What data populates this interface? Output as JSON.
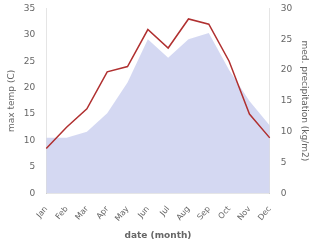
{
  "chart_data": {
    "type": "line",
    "x_label": "date (month)",
    "y_label": "max temp (C)",
    "y2_label": "med. precipitation (kg/m2)",
    "categories": [
      "Jan",
      "Feb",
      "Mar",
      "Apr",
      "May",
      "Jun",
      "Jul",
      "Aug",
      "Sep",
      "Oct",
      "Nov",
      "Dec"
    ],
    "series": [
      {
        "type": "area",
        "axis": "y2",
        "color": "#b0b8e8",
        "values": [
          9,
          9,
          10,
          13,
          18,
          25,
          22,
          25,
          26,
          20,
          15,
          11
        ]
      },
      {
        "type": "line",
        "color": "#b03030",
        "values": [
          8.5,
          12.5,
          16,
          23,
          24,
          31,
          27.5,
          33,
          32,
          25,
          15,
          10.5
        ]
      }
    ],
    "ylim": [
      0,
      35
    ],
    "yticks": [
      0,
      5,
      10,
      15,
      20,
      25,
      30,
      35
    ],
    "y2lim": [
      0,
      30
    ],
    "y2ticks": [
      0,
      5,
      10,
      15,
      20,
      25,
      30
    ],
    "grid": false
  }
}
